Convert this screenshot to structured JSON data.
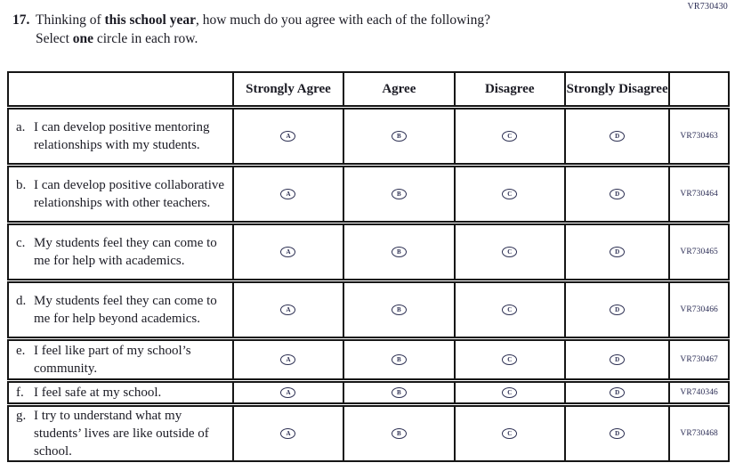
{
  "page": {
    "top_right_code": "VR730430"
  },
  "question": {
    "number": "17.",
    "line1_pre": "Thinking of ",
    "line1_bold": "this school year",
    "line1_post": ", how much do you agree with each of the following?",
    "line2_pre": "Select ",
    "line2_bold": "one",
    "line2_post": " circle in each row."
  },
  "table": {
    "headers": [
      "Strongly Agree",
      "Agree",
      "Disagree",
      "Strongly Disagree"
    ],
    "option_letters": [
      "A",
      "B",
      "C",
      "D"
    ],
    "rows": [
      {
        "letter": "a.",
        "statement": "I can develop positive mentoring relationships with my students.",
        "code": "VR730463"
      },
      {
        "letter": "b.",
        "statement": "I can develop positive collaborative relationships with other teachers.",
        "code": "VR730464"
      },
      {
        "letter": "c.",
        "statement": "My students feel they can come to me for help with academics.",
        "code": "VR730465"
      },
      {
        "letter": "d.",
        "statement": "My students feel they can come to me for help beyond academics.",
        "code": "VR730466"
      },
      {
        "letter": "e.",
        "statement": "I feel like part of my school’s community.",
        "code": "VR730467"
      },
      {
        "letter": "f.",
        "statement": "I feel safe at my school.",
        "code": "VR740346"
      },
      {
        "letter": "g.",
        "statement": "I try to understand what my students’ lives are like outside of school.",
        "code": "VR730468"
      }
    ]
  }
}
